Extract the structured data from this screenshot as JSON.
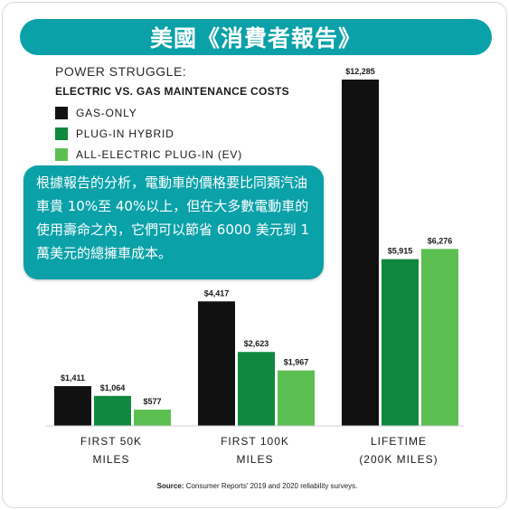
{
  "banner": {
    "title": "美國《消費者報告》"
  },
  "callout": {
    "text": "根據報告的分析，電動車的價格要比同類汽油車貴 10%至 40%以上，但在大多數電動車的使用壽命之內，它們可以節省 6000 美元到 1 萬美元的總擁車成本。"
  },
  "source": {
    "label": "Source:",
    "text": "Consumer Reports' 2019 and 2020 reliability surveys."
  },
  "colors": {
    "gas": "#111111",
    "hybrid": "#10893e",
    "ev": "#5cbf52",
    "accent": "#0aa1a8"
  },
  "chart_data": {
    "type": "bar",
    "title": "POWER STRUGGLE:",
    "subtitle": "ELECTRIC VS. GAS MAINTENANCE COSTS",
    "categories": [
      [
        "FIRST 50K",
        "MILES"
      ],
      [
        "FIRST 100K",
        "MILES"
      ],
      [
        "LIFETIME",
        "(200K MILES)"
      ]
    ],
    "series": [
      {
        "name": "GAS-ONLY",
        "values": [
          1411,
          4417,
          12285
        ],
        "labels": [
          "$1,411",
          "$4,417",
          "$12,285"
        ]
      },
      {
        "name": "PLUG-IN HYBRID",
        "values": [
          1064,
          2623,
          5915
        ],
        "labels": [
          "$1,064",
          "$2,623",
          "$5,915"
        ]
      },
      {
        "name": "ALL-ELECTRIC PLUG-IN (EV)",
        "values": [
          577,
          1967,
          6276
        ],
        "labels": [
          "$577",
          "$1,967",
          "$6,276"
        ]
      }
    ],
    "ylim": [
      0,
      12285
    ],
    "grid": false,
    "legend": "top-left"
  }
}
